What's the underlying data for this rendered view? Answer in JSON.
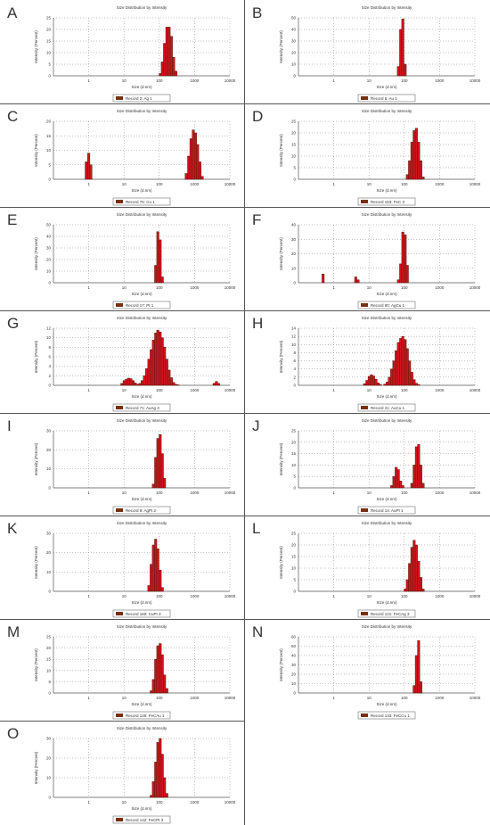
{
  "chart_data": [
    {
      "panel": "A",
      "type": "bar",
      "title": "Size Distribution by Intensity",
      "xlabel": "Size (d.nm)",
      "ylabel": "Intensity (Percent)",
      "xscale": "log",
      "xlim": [
        0.1,
        10000
      ],
      "ylim": [
        0,
        25
      ],
      "yticks": [
        0,
        5,
        10,
        15,
        20,
        25
      ],
      "grid": true,
      "series": [
        {
          "name": "Record 2: Ag 1",
          "x": [
            106,
            122,
            141,
            164,
            190,
            220,
            255,
            295
          ],
          "values": [
            1,
            6,
            14,
            21,
            21,
            17,
            8,
            2
          ]
        }
      ]
    },
    {
      "panel": "B",
      "type": "bar",
      "title": "Size Distribution by Intensity",
      "xlabel": "Size (d.nm)",
      "ylabel": "Intensity (Percent)",
      "xscale": "log",
      "xlim": [
        0.1,
        10000
      ],
      "ylim": [
        0,
        50
      ],
      "yticks": [
        0,
        10,
        20,
        30,
        40,
        50
      ],
      "grid": true,
      "series": [
        {
          "name": "Record 6: Au 1",
          "x": [
            68,
            79,
            91,
            106
          ],
          "values": [
            8,
            40,
            49,
            10
          ]
        }
      ]
    },
    {
      "panel": "C",
      "type": "bar",
      "title": "Size Distribution by Intensity",
      "xlabel": "Size (d.nm)",
      "ylabel": "Intensity (Percent)",
      "xscale": "log",
      "xlim": [
        0.1,
        10000
      ],
      "ylim": [
        0,
        20
      ],
      "yticks": [
        0,
        5,
        10,
        15,
        20
      ],
      "grid": true,
      "series": [
        {
          "name": "Record 75: Cu 1",
          "x": [
            0.85,
            1.0,
            1.15,
            580,
            680,
            790,
            920,
            1060,
            1220,
            1420,
            1650
          ],
          "values": [
            6,
            9,
            5,
            2,
            8,
            14,
            17,
            16,
            12,
            6,
            1
          ]
        }
      ]
    },
    {
      "panel": "D",
      "type": "bar",
      "title": "Size Distribution by Intensity",
      "xlabel": "Size (d.nm)",
      "ylabel": "Intensity (Percent)",
      "xscale": "log",
      "xlim": [
        0.1,
        10000
      ],
      "ylim": [
        0,
        25
      ],
      "yticks": [
        0,
        5,
        10,
        15,
        20,
        25
      ],
      "grid": true,
      "series": [
        {
          "name": "Record 153: FeC 3",
          "x": [
            122,
            141,
            164,
            190,
            220,
            255,
            295,
            342
          ],
          "values": [
            2,
            8,
            16,
            21,
            22,
            16,
            8,
            1
          ]
        }
      ]
    },
    {
      "panel": "E",
      "type": "bar",
      "title": "Size Distribution by Intensity",
      "xlabel": "Size (d.nm)",
      "ylabel": "Intensity (Percent)",
      "xscale": "log",
      "xlim": [
        0.1,
        10000
      ],
      "ylim": [
        0,
        50
      ],
      "yticks": [
        0,
        10,
        20,
        30,
        40,
        50
      ],
      "grid": true,
      "series": [
        {
          "name": "Record 17: Pt 1",
          "x": [
            79,
            91,
            106,
            122
          ],
          "values": [
            15,
            44,
            37,
            5
          ]
        }
      ]
    },
    {
      "panel": "F",
      "type": "bar",
      "title": "Size Distribution by Intensity",
      "xlabel": "Size (d.nm)",
      "ylabel": "Intensity (Percent)",
      "xscale": "log",
      "xlim": [
        0.1,
        10000
      ],
      "ylim": [
        0,
        40
      ],
      "yticks": [
        0,
        10,
        20,
        30,
        40
      ],
      "grid": true,
      "series": [
        {
          "name": "Record 80: AgCu 1",
          "x": [
            0.5,
            4.2,
            4.9,
            68,
            79,
            91,
            106,
            122
          ],
          "values": [
            6,
            4,
            2,
            2,
            13,
            35,
            33,
            12
          ]
        }
      ]
    },
    {
      "panel": "G",
      "type": "bar",
      "title": "Size Distribution by Intensity",
      "xlabel": "Size (d.nm)",
      "ylabel": "Intensity (Percent)",
      "xscale": "log",
      "xlim": [
        0.1,
        10000
      ],
      "ylim": [
        0,
        12
      ],
      "yticks": [
        0,
        2,
        4,
        6,
        8,
        10,
        12
      ],
      "grid": true,
      "series": [
        {
          "name": "Record 71: AuAg 3",
          "x": [
            8.7,
            10.1,
            11.7,
            13.5,
            15.7,
            18.2,
            21,
            24.4,
            28.2,
            32.7,
            37.8,
            43.8,
            50.7,
            58.8,
            68,
            79,
            91,
            106,
            122,
            141,
            164,
            190,
            220,
            255,
            295,
            342,
            3580,
            4150,
            4800
          ],
          "values": [
            0.4,
            1,
            1.3,
            1.5,
            1.4,
            1,
            0.5,
            0.2,
            0.4,
            1,
            2,
            3.5,
            5.5,
            7.5,
            9.5,
            11,
            11.6,
            11.2,
            10,
            8,
            5.5,
            3.2,
            1.6,
            0.6,
            0.2,
            0.1,
            0.4,
            0.8,
            0.4
          ]
        }
      ]
    },
    {
      "panel": "H",
      "type": "bar",
      "title": "Size Distribution by Intensity",
      "xlabel": "Size (d.nm)",
      "ylabel": "Intensity (Percent)",
      "xscale": "log",
      "xlim": [
        0.1,
        10000
      ],
      "ylim": [
        0,
        14
      ],
      "yticks": [
        0,
        2,
        4,
        6,
        8,
        10,
        12,
        14
      ],
      "grid": true,
      "series": [
        {
          "name": "Record 21: AuCu 1",
          "x": [
            7.5,
            8.7,
            10.1,
            11.7,
            13.5,
            15.7,
            18.2,
            21,
            28.2,
            32.7,
            37.8,
            43.8,
            50.7,
            58.8,
            68,
            79,
            91,
            106,
            122,
            141,
            164,
            190,
            220,
            255
          ],
          "values": [
            0.4,
            1.2,
            2.2,
            2.6,
            2.3,
            1.5,
            0.6,
            0.2,
            0.3,
            0.8,
            2,
            4,
            6,
            8.5,
            10.5,
            11.5,
            12,
            11.2,
            9,
            6,
            3.2,
            1.4,
            0.5,
            0.2
          ]
        }
      ]
    },
    {
      "panel": "I",
      "type": "bar",
      "title": "Size Distribution by Intensity",
      "xlabel": "Size (d.nm)",
      "ylabel": "Intensity (Percent)",
      "xscale": "log",
      "xlim": [
        0.1,
        10000
      ],
      "ylim": [
        0,
        30
      ],
      "yticks": [
        0,
        10,
        20,
        30
      ],
      "grid": true,
      "series": [
        {
          "name": "Record 8: AgPt 2",
          "x": [
            68,
            79,
            91,
            106,
            122,
            141
          ],
          "values": [
            2,
            16,
            26,
            28,
            18,
            5
          ]
        }
      ]
    },
    {
      "panel": "J",
      "type": "bar",
      "title": "Size Distribution by Intensity",
      "xlabel": "Size (d.nm)",
      "ylabel": "Intensity (Percent)",
      "xscale": "log",
      "xlim": [
        0.1,
        10000
      ],
      "ylim": [
        0,
        25
      ],
      "yticks": [
        0,
        5,
        10,
        15,
        20,
        25
      ],
      "grid": true,
      "series": [
        {
          "name": "Record 14: AuPt 1",
          "x": [
            43.8,
            50.7,
            58.8,
            68,
            79,
            91,
            164,
            190,
            220,
            255,
            295,
            342
          ],
          "values": [
            1,
            5,
            9,
            8,
            3,
            1,
            2,
            10,
            18,
            19,
            10,
            2
          ]
        }
      ]
    },
    {
      "panel": "K",
      "type": "bar",
      "title": "Size Distribution by Intensity",
      "xlabel": "Size (d.nm)",
      "ylabel": "Intensity (Percent)",
      "xscale": "log",
      "xlim": [
        0.1,
        10000
      ],
      "ylim": [
        0,
        30
      ],
      "yticks": [
        0,
        10,
        20,
        30
      ],
      "grid": true,
      "series": [
        {
          "name": "Record 160: CuPt 3",
          "x": [
            50.7,
            58.8,
            68,
            79,
            91,
            106,
            122
          ],
          "values": [
            3,
            14,
            24,
            27,
            22,
            11,
            2
          ]
        }
      ]
    },
    {
      "panel": "L",
      "type": "bar",
      "title": "Size Distribution by Intensity",
      "xlabel": "Size (d.nm)",
      "ylabel": "Intensity (Percent)",
      "xscale": "log",
      "xlim": [
        0.1,
        10000
      ],
      "ylim": [
        0,
        25
      ],
      "yticks": [
        0,
        5,
        10,
        15,
        20,
        25
      ],
      "grid": true,
      "series": [
        {
          "name": "Record 121: FeCAg 3",
          "x": [
            106,
            122,
            141,
            164,
            190,
            220,
            255,
            295,
            342
          ],
          "values": [
            1,
            5,
            12,
            19,
            22,
            20,
            13,
            6,
            1
          ]
        }
      ]
    },
    {
      "panel": "M",
      "type": "bar",
      "title": "Size Distribution by Intensity",
      "xlabel": "Size (d.nm)",
      "ylabel": "Intensity (Percent)",
      "xscale": "log",
      "xlim": [
        0.1,
        10000
      ],
      "ylim": [
        0,
        25
      ],
      "yticks": [
        0,
        5,
        10,
        15,
        20,
        25
      ],
      "grid": true,
      "series": [
        {
          "name": "Record 126: FeCAu 1",
          "x": [
            58.8,
            68,
            79,
            91,
            106,
            122,
            141,
            164
          ],
          "values": [
            1,
            6,
            15,
            21,
            22,
            17,
            8,
            2
          ]
        }
      ]
    },
    {
      "panel": "N",
      "type": "bar",
      "title": "Size Distribution by Intensity",
      "xlabel": "Size (d.nm)",
      "ylabel": "Intensity (Percent)",
      "xscale": "log",
      "xlim": [
        0.1,
        10000
      ],
      "ylim": [
        0,
        60
      ],
      "yticks": [
        0,
        10,
        20,
        30,
        40,
        50,
        60
      ],
      "grid": true,
      "series": [
        {
          "name": "Record 133: FeCCu 1",
          "x": [
            190,
            220,
            255,
            295
          ],
          "values": [
            8,
            40,
            56,
            12
          ]
        }
      ]
    },
    {
      "panel": "O",
      "type": "bar",
      "title": "Size Distribution by Intensity",
      "xlabel": "Size (d.nm)",
      "ylabel": "Intensity (Percent)",
      "xscale": "log",
      "xlim": [
        0.1,
        10000
      ],
      "ylim": [
        0,
        30
      ],
      "yticks": [
        0,
        10,
        20,
        30
      ],
      "grid": true,
      "series": [
        {
          "name": "Record 142: FeCPt 3",
          "x": [
            58.8,
            68,
            79,
            91,
            106,
            122,
            141,
            164
          ],
          "values": [
            1,
            8,
            18,
            28,
            30,
            22,
            10,
            2
          ]
        }
      ]
    }
  ],
  "colors": {
    "bar_fill": "#d0141c",
    "bar_edge": "#5a1a10",
    "legend_swatch": "#7a3010",
    "text": "#333333",
    "grid": "#888888"
  },
  "xticks": [
    1,
    10,
    100,
    1000,
    10000
  ]
}
